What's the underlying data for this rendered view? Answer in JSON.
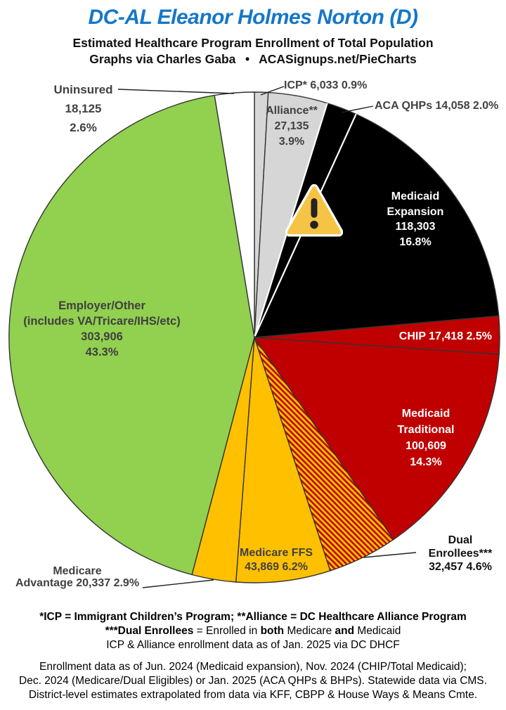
{
  "header": {
    "title": "DC-AL Eleanor Holmes Norton (D)",
    "title_color": "#1577c8",
    "subtitle1": "Estimated Healthcare Program Enrollment of Total Population",
    "subtitle2": "Graphs via Charles Gaba  •  ACASignups.net/PieCharts"
  },
  "chart_data": {
    "type": "pie",
    "title": "Estimated Healthcare Program Enrollment of Total Population",
    "direction": "clockwise",
    "start_angle_deg": 0,
    "legend_position": "labels-on-and-around-slices",
    "slices": [
      {
        "label": "ICP*",
        "enrollment": 6033,
        "percent": 0.9,
        "color": "#d6d6d6"
      },
      {
        "label": "Alliance**",
        "enrollment": 27135,
        "percent": 3.9,
        "color": "#d6d6d6"
      },
      {
        "label": "ACA QHPs",
        "enrollment": 14058,
        "percent": 2.0,
        "color": "#000000"
      },
      {
        "label": "Medicaid Expansion",
        "enrollment": 118303,
        "percent": 16.8,
        "color": "#000000"
      },
      {
        "label": "CHIP",
        "enrollment": 17418,
        "percent": 2.5,
        "color": "#c00000"
      },
      {
        "label": "Medicaid Traditional",
        "enrollment": 100609,
        "percent": 14.3,
        "color": "#c00000"
      },
      {
        "label": "Dual Enrollees***",
        "enrollment": 32457,
        "percent": 4.6,
        "color": "hatch-red-yellow"
      },
      {
        "label": "Medicare FFS",
        "enrollment": 43869,
        "percent": 6.2,
        "color": "#ffc000"
      },
      {
        "label": "Medicare Advantage",
        "enrollment": 20337,
        "percent": 2.9,
        "color": "#ffc000"
      },
      {
        "label": "Employer/Other (includes VA/Tricare/IHS/etc)",
        "enrollment": 303906,
        "percent": 43.3,
        "color": "#92d050"
      },
      {
        "label": "Uninsured",
        "enrollment": 18125,
        "percent": 2.6,
        "color": "#ffffff"
      }
    ],
    "hatch_colors": {
      "base": "#ffc000",
      "stripe": "#c00000"
    }
  },
  "slice_labels": {
    "uninsured": [
      "Uninsured",
      "18,125",
      "2.6%"
    ],
    "icp": "ICP* 6,033 0.9%",
    "aca_qhps": "ACA QHPs 14,058 2.0%",
    "alliance": [
      "Alliance**",
      "27,135",
      "3.9%"
    ],
    "medicaid_expansion": [
      "Medicaid",
      "Expansion",
      "118,303",
      "16.8%"
    ],
    "chip": "CHIP 17,418 2.5%",
    "medicaid_traditional": [
      "Medicaid",
      "Traditional",
      "100,609",
      "14.3%"
    ],
    "dual_enrollees": [
      "Dual Enrollees***",
      "32,457 4.6%"
    ],
    "medicare_ffs": [
      "Medicare FFS",
      "43,869 6.2%"
    ],
    "medicare_advantage": [
      "Medicare",
      "Advantage 20,337 2.9%"
    ],
    "employer_other": [
      "Employer/Other",
      "(includes VA/Tricare/IHS/etc)",
      "303,906",
      "43.3%"
    ]
  },
  "footnotes": {
    "line1": "*ICP = Immigrant Children’s Program; **Alliance = DC Healthcare Alliance Program",
    "line2_parts": [
      "***Dual Enrollees",
      " = Enrolled in ",
      "both",
      " Medicare ",
      "and",
      " Medicaid"
    ],
    "line3": "ICP & Alliance enrollment data as of Jan. 2025 via DC DHCF"
  },
  "source_notes": {
    "line1": "Enrollment data as of Jun. 2024 (Medicaid expansion), Nov. 2024 (CHIP/Total Medicaid);",
    "line2": "Dec. 2024 (Medicare/Dual Eligibles) or Jan. 2025 (ACA QHPs & BHPs). Statewide data via CMS.",
    "line3": "District-level estimates extrapolated from data via KFF, CBPP & House Ways & Means Cmte."
  }
}
